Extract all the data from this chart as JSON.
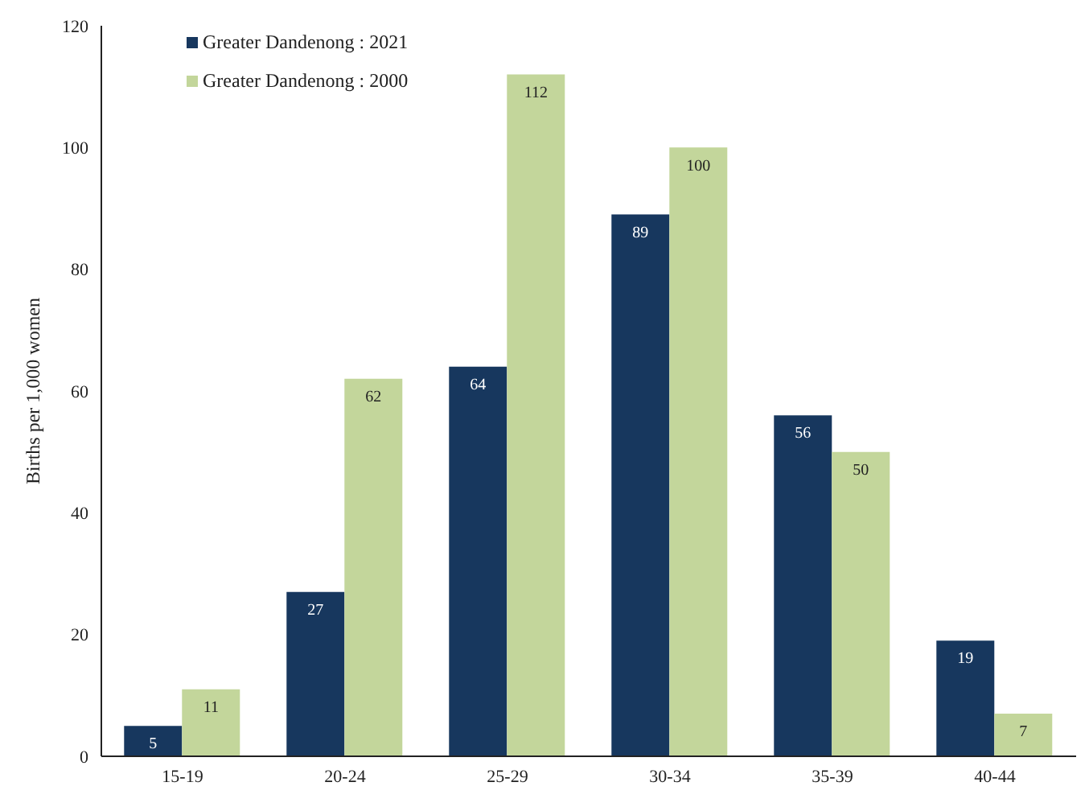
{
  "chart_data": {
    "type": "bar",
    "ylabel": "Births per 1,000 women",
    "categories": [
      "15-19",
      "20-24",
      "25-29",
      "30-34",
      "35-39",
      "40-44"
    ],
    "series": [
      {
        "name": "Greater Dandenong : 2021",
        "color": "#17375e",
        "values": [
          5,
          27,
          64,
          89,
          56,
          19
        ]
      },
      {
        "name": "Greater Dandenong : 2000",
        "color": "#c3d69b",
        "values": [
          11,
          62,
          112,
          100,
          50,
          7
        ]
      }
    ],
    "ylim": [
      0,
      120
    ],
    "yticks": [
      0,
      20,
      40,
      60,
      80,
      100,
      120
    ],
    "grid": false,
    "legend": "top left",
    "data_labels": true
  }
}
